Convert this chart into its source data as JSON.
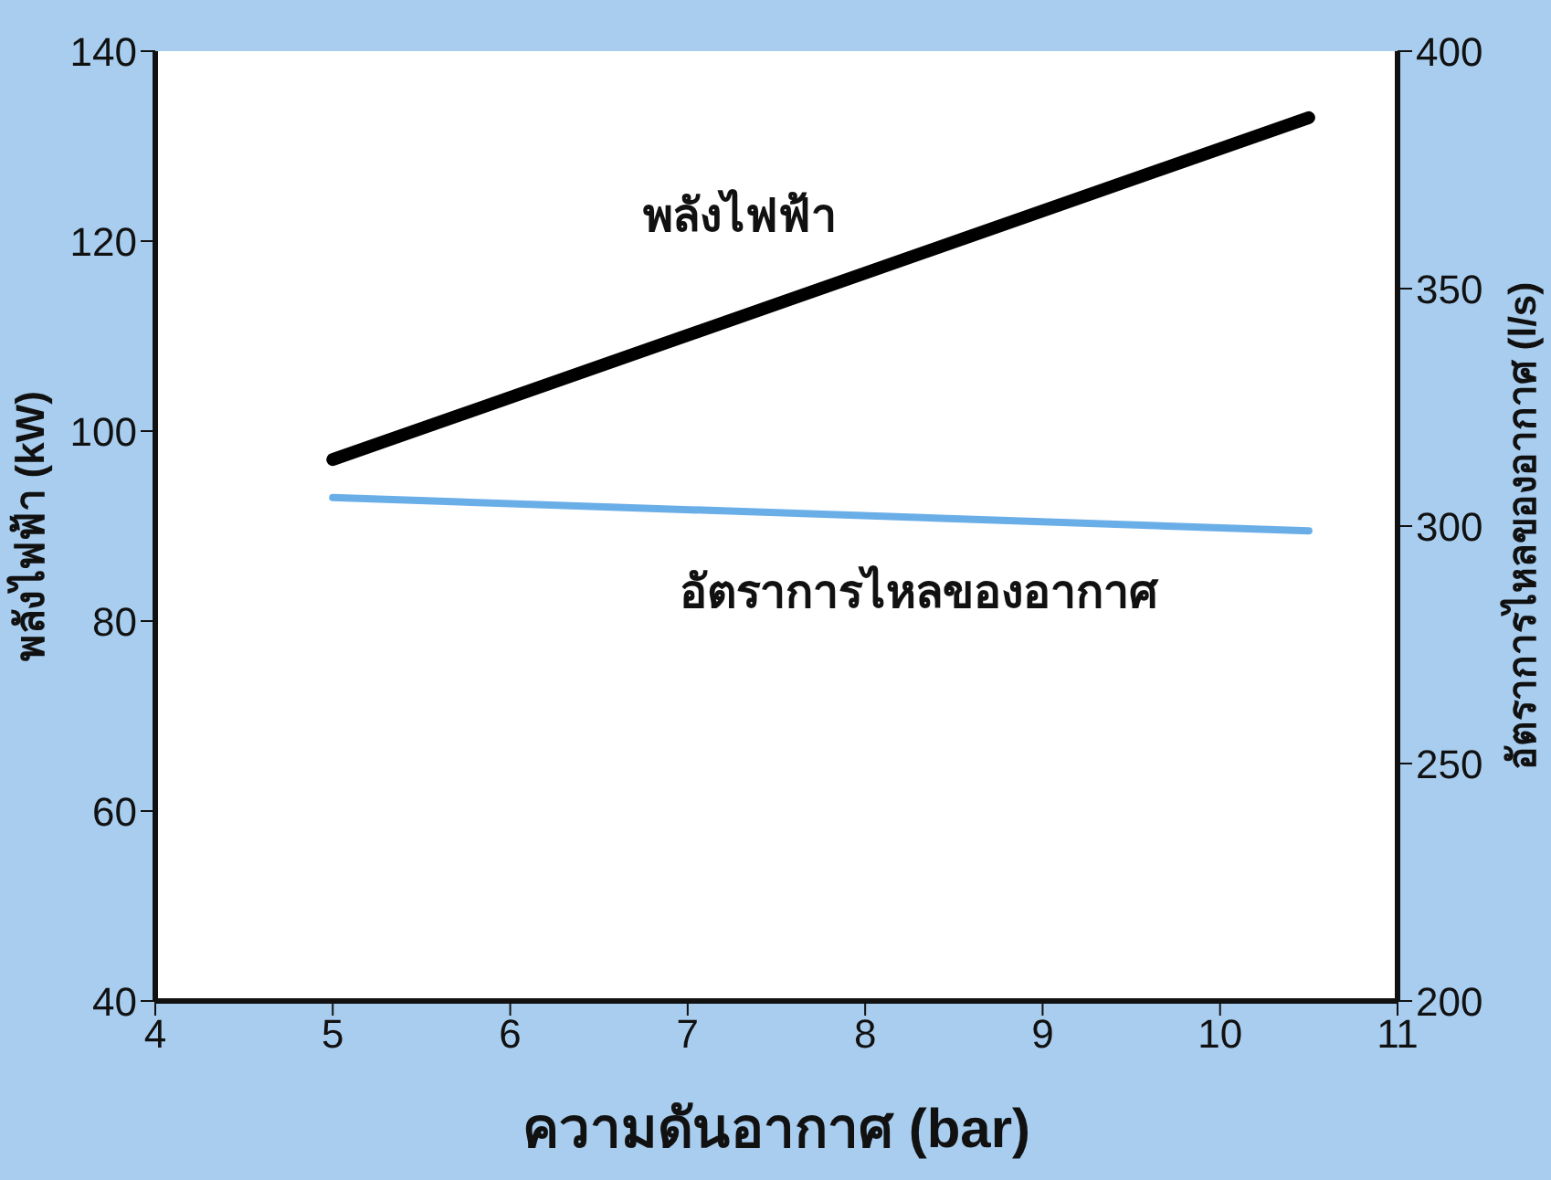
{
  "chart_data": {
    "type": "line",
    "xlabel": "ความดันอากาศ (bar)",
    "ylabel": "พลังไฟฟ้า (kW)",
    "y2label": "อัตราการไหลของอากาศ (l/s)",
    "x": [
      5,
      10.5
    ],
    "series": [
      {
        "name": "พลังไฟฟ้า",
        "color": "#000000",
        "values": [
          97,
          133
        ]
      },
      {
        "name": "อัตราการไหลของอากาศ",
        "color": "#6aaee8",
        "values": [
          306,
          299
        ],
        "axis": "y2"
      }
    ],
    "xlim": [
      4,
      11
    ],
    "xticks": [
      4,
      5,
      6,
      7,
      8,
      9,
      10,
      11
    ],
    "ylim": [
      40,
      140
    ],
    "yticks": [
      40,
      60,
      80,
      100,
      120,
      140
    ],
    "y2lim": [
      200,
      400
    ],
    "y2ticks": [
      200,
      250,
      300,
      350,
      400
    ],
    "grid": false,
    "marker": "none",
    "line_style": "solid"
  }
}
